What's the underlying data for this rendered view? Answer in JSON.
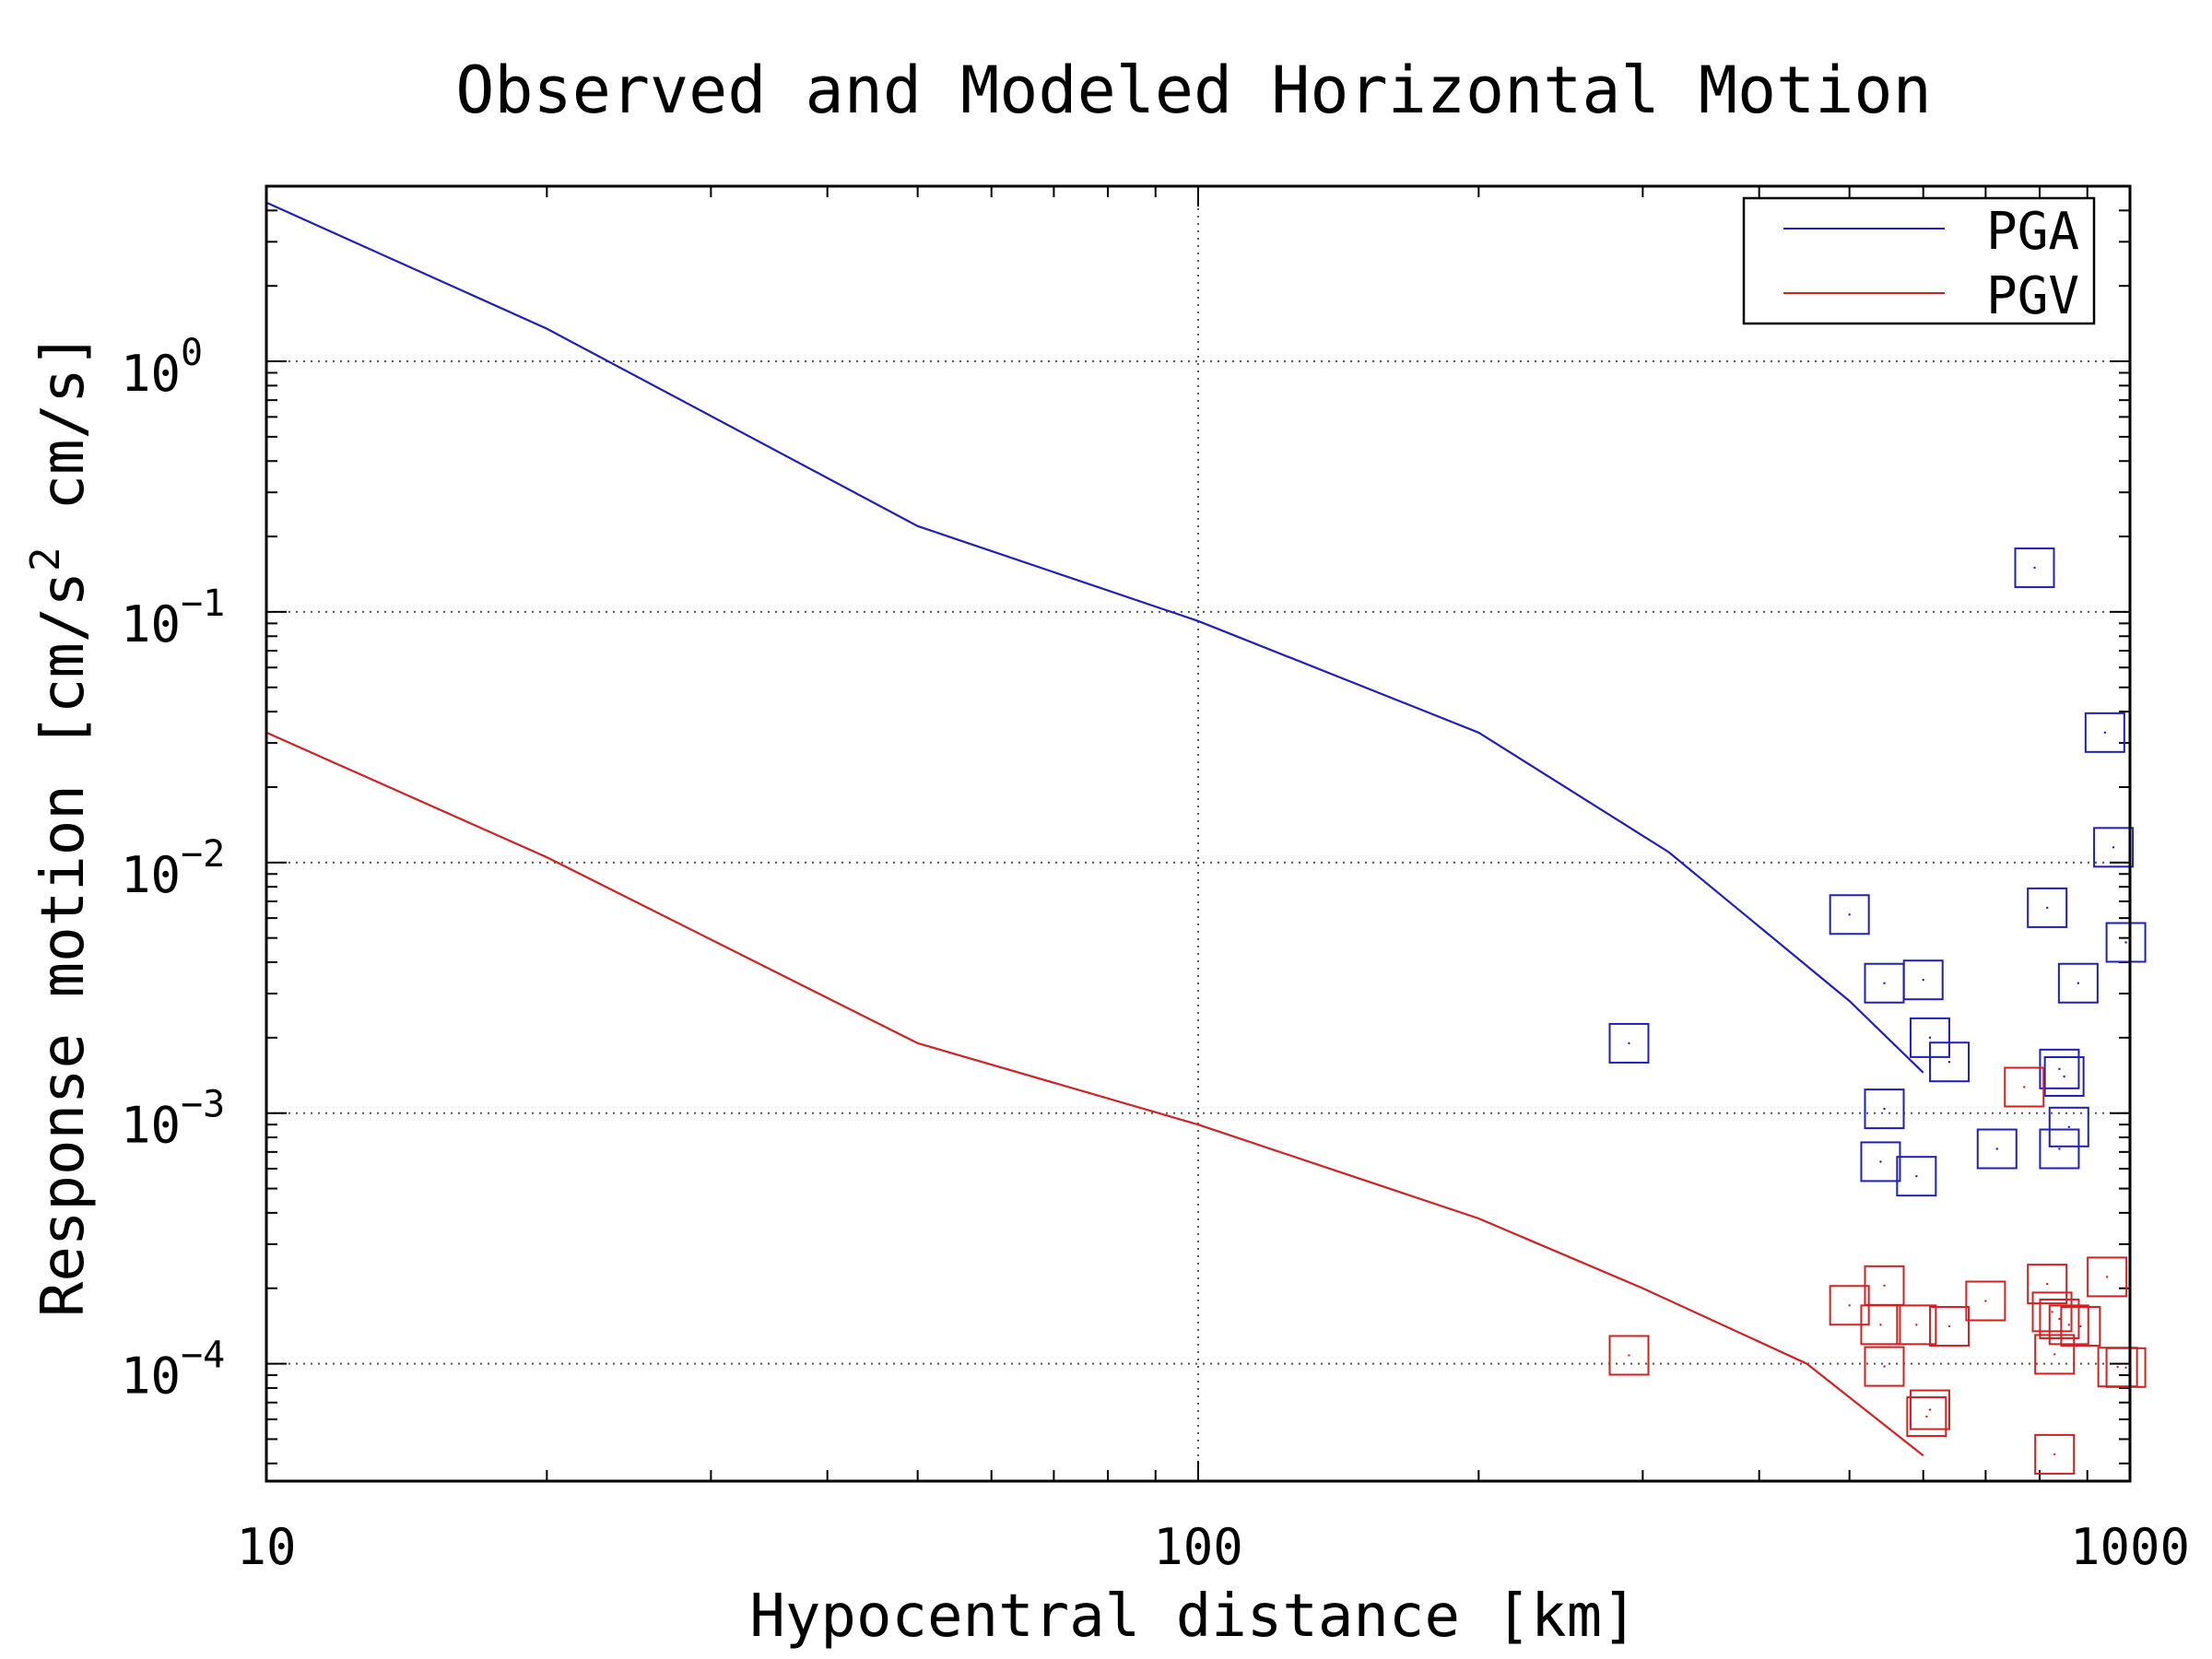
{
  "chart_data": {
    "type": "scatter",
    "title": "Observed and Modeled Horizontal Motion",
    "xlabel": "Hypocentral distance [km]",
    "ylabel": "Response motion [cm/s",
    "ylabel_sup": "2",
    "ylabel_tail": "cm/s]",
    "x_scale": "log",
    "y_scale": "log",
    "xlim": [
      10,
      1000
    ],
    "ylim": [
      3.4e-05,
      5.0
    ],
    "x_ticks": [
      10,
      100,
      1000
    ],
    "x_tick_labels": [
      "10",
      "100",
      "1000"
    ],
    "y_ticks": [
      0.0001,
      0.001,
      0.01,
      0.1,
      1
    ],
    "y_tick_bases": [
      "10",
      "10",
      "10",
      "10",
      "10"
    ],
    "y_tick_exponents": [
      "−4",
      "−3",
      "−2",
      "−1",
      "0"
    ],
    "grid": true,
    "legend_position": "top-right",
    "colors": {
      "pga": "#1f1fbf",
      "pgv": "#d42020"
    },
    "series": [
      {
        "name": "PGA",
        "kind": "line",
        "x": [
          10,
          20,
          50,
          100,
          200,
          320,
          500,
          600
        ],
        "y": [
          4.3,
          1.35,
          0.22,
          0.092,
          0.033,
          0.011,
          0.0028,
          0.00145
        ]
      },
      {
        "name": "PGV",
        "kind": "line",
        "x": [
          10,
          20,
          50,
          100,
          200,
          300,
          450,
          600
        ],
        "y": [
          0.033,
          0.0105,
          0.0019,
          0.0009,
          0.00038,
          0.0002,
          0.0001,
          4.3e-05
        ]
      },
      {
        "kind": "markers",
        "color": "pga",
        "x": [
          290,
          790,
          940,
          960,
          500,
          815,
          600,
          545,
          990,
          880,
          610,
          640,
          840,
          850,
          545,
          720,
          860,
          840,
          540,
          590
        ],
        "y": [
          0.0019,
          0.15,
          0.033,
          0.0115,
          0.0062,
          0.0066,
          0.0034,
          0.0033,
          0.0048,
          0.0033,
          0.002,
          0.0016,
          0.0015,
          0.0014,
          0.00104,
          0.00072,
          0.00088,
          0.00072,
          0.00064,
          0.00056
        ]
      },
      {
        "kind": "markers",
        "color": "pgv",
        "x": [
          290,
          770,
          500,
          545,
          540,
          590,
          640,
          700,
          815,
          945,
          825,
          860,
          840,
          885,
          830,
          545,
          970,
          990,
          610,
          605,
          830
        ],
        "y": [
          0.000108,
          0.00127,
          0.000171,
          0.000205,
          0.000143,
          0.000143,
          0.000141,
          0.000178,
          0.000208,
          0.000222,
          0.000161,
          0.000143,
          0.000151,
          0.000141,
          0.000109,
          9.75e-05,
          9.7e-05,
          9.65e-05,
          6.55e-05,
          6.15e-05,
          4.35e-05
        ]
      }
    ]
  }
}
